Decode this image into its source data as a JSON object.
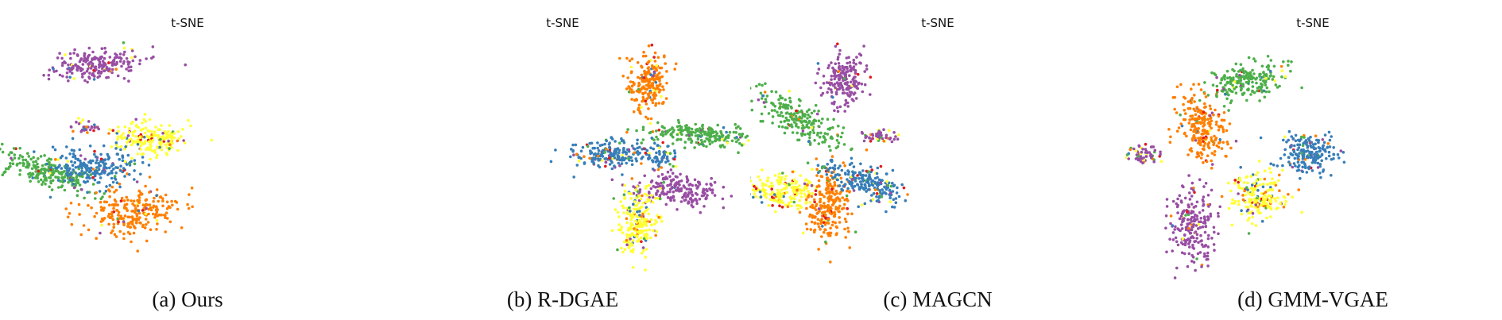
{
  "chart_data": [
    {
      "type": "scatter",
      "title": "t-SNE",
      "caption": "(a) Ours",
      "xlabel": "",
      "ylabel": "",
      "axes_visible": false,
      "grid": false,
      "clusters": [
        {
          "color": "#984ea3",
          "center": [
            0.255,
            0.18
          ],
          "spread": [
            0.06,
            0.035
          ],
          "angle": -18,
          "count": 220,
          "noise": 0.08
        },
        {
          "color": "#984ea3",
          "center": [
            0.228,
            0.47
          ],
          "spread": [
            0.018,
            0.012
          ],
          "angle": 0,
          "count": 30,
          "noise": 0.35
        },
        {
          "color": "#ffff33",
          "center": [
            0.4,
            0.525
          ],
          "spread": [
            0.05,
            0.037
          ],
          "angle": 8,
          "count": 200,
          "noise": 0.15
        },
        {
          "color": "#4daf4a",
          "center": [
            0.115,
            0.68
          ],
          "spread": [
            0.085,
            0.028
          ],
          "angle": 35,
          "count": 230,
          "noise": 0.08
        },
        {
          "color": "#377eb8",
          "center": [
            0.25,
            0.665
          ],
          "spread": [
            0.058,
            0.045
          ],
          "angle": 10,
          "count": 220,
          "noise": 0.15
        },
        {
          "color": "#ff7f00",
          "center": [
            0.355,
            0.875
          ],
          "spread": [
            0.065,
            0.05
          ],
          "angle": -30,
          "count": 240,
          "noise": 0.1
        }
      ]
    },
    {
      "type": "scatter",
      "title": "t-SNE",
      "caption": "(b) R-DGAE",
      "xlabel": "",
      "ylabel": "",
      "axes_visible": false,
      "grid": false,
      "clusters": [
        {
          "color": "#ff7f00",
          "center": [
            0.725,
            0.265
          ],
          "spread": [
            0.025,
            0.075
          ],
          "angle": 5,
          "count": 220,
          "noise": 0.12
        },
        {
          "color": "#4daf4a",
          "center": [
            0.875,
            0.51
          ],
          "spread": [
            0.075,
            0.028
          ],
          "angle": 8,
          "count": 230,
          "noise": 0.08
        },
        {
          "color": "#377eb8",
          "center": [
            0.63,
            0.6
          ],
          "spread": [
            0.055,
            0.028
          ],
          "angle": -5,
          "count": 200,
          "noise": 0.2
        },
        {
          "color": "#377eb8",
          "center": [
            0.76,
            0.61
          ],
          "spread": [
            0.018,
            0.035
          ],
          "angle": 0,
          "count": 60,
          "noise": 0.3
        },
        {
          "color": "#984ea3",
          "center": [
            0.81,
            0.77
          ],
          "spread": [
            0.06,
            0.035
          ],
          "angle": 18,
          "count": 200,
          "noise": 0.08
        },
        {
          "color": "#ffff33",
          "center": [
            0.7,
            0.92
          ],
          "spread": [
            0.025,
            0.085
          ],
          "angle": 0,
          "count": 220,
          "noise": 0.2
        }
      ]
    },
    {
      "type": "scatter",
      "title": "t-SNE",
      "caption": "(c) MAGCN",
      "xlabel": "",
      "ylabel": "",
      "axes_visible": false,
      "grid": false,
      "clusters": [
        {
          "color": "#4daf4a",
          "center": [
            0.135,
            0.44
          ],
          "spread": [
            0.085,
            0.028
          ],
          "angle": 50,
          "count": 220,
          "noise": 0.08
        },
        {
          "color": "#984ea3",
          "center": [
            0.25,
            0.24
          ],
          "spread": [
            0.025,
            0.06
          ],
          "angle": 0,
          "count": 200,
          "noise": 0.08
        },
        {
          "color": "#984ea3",
          "center": [
            0.34,
            0.52
          ],
          "spread": [
            0.028,
            0.015
          ],
          "angle": 0,
          "count": 50,
          "noise": 0.35
        },
        {
          "color": "#ffff33",
          "center": [
            0.09,
            0.775
          ],
          "spread": [
            0.045,
            0.04
          ],
          "angle": 0,
          "count": 200,
          "noise": 0.18
        },
        {
          "color": "#ff7f00",
          "center": [
            0.205,
            0.85
          ],
          "spread": [
            0.03,
            0.09
          ],
          "angle": 0,
          "count": 230,
          "noise": 0.1
        },
        {
          "color": "#377eb8",
          "center": [
            0.3,
            0.73
          ],
          "spread": [
            0.07,
            0.035
          ],
          "angle": 40,
          "count": 230,
          "noise": 0.15
        }
      ]
    },
    {
      "type": "scatter",
      "title": "t-SNE",
      "caption": "(d) GMM-VGAE",
      "xlabel": "",
      "ylabel": "",
      "axes_visible": false,
      "grid": false,
      "clusters": [
        {
          "color": "#4daf4a",
          "center": [
            0.33,
            0.25
          ],
          "spread": [
            0.06,
            0.04
          ],
          "angle": -35,
          "count": 220,
          "noise": 0.1
        },
        {
          "color": "#ff7f00",
          "center": [
            0.205,
            0.47
          ],
          "spread": [
            0.032,
            0.08
          ],
          "angle": -8,
          "count": 230,
          "noise": 0.12
        },
        {
          "color": "#984ea3",
          "center": [
            0.045,
            0.6
          ],
          "spread": [
            0.022,
            0.025
          ],
          "angle": 0,
          "count": 60,
          "noise": 0.35
        },
        {
          "color": "#377eb8",
          "center": [
            0.485,
            0.6
          ],
          "spread": [
            0.04,
            0.045
          ],
          "angle": 0,
          "count": 200,
          "noise": 0.18
        },
        {
          "color": "#ffff33",
          "center": [
            0.355,
            0.805
          ],
          "spread": [
            0.035,
            0.06
          ],
          "angle": 0,
          "count": 200,
          "noise": 0.3
        },
        {
          "color": "#984ea3",
          "center": [
            0.18,
            0.935
          ],
          "spread": [
            0.03,
            0.085
          ],
          "angle": 0,
          "count": 220,
          "noise": 0.1
        }
      ]
    }
  ],
  "noise_colors": [
    "#e41a1c",
    "#377eb8",
    "#4daf4a",
    "#984ea3",
    "#ff7f00",
    "#ffff33"
  ]
}
